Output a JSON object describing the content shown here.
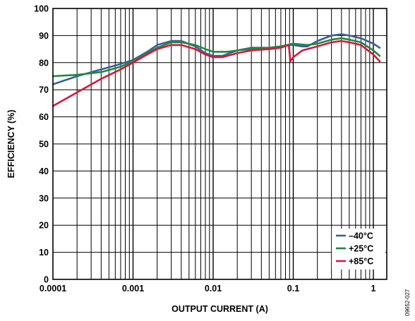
{
  "chart_data": {
    "type": "line",
    "title": "",
    "xlabel": "OUTPUT CURRENT (A)",
    "ylabel": "EFFICIENCY (%)",
    "x_scale": "log",
    "xlim": [
      0.0001,
      1.2
    ],
    "ylim": [
      0,
      100
    ],
    "x_ticks": [
      0.0001,
      0.001,
      0.01,
      0.1,
      1
    ],
    "x_tick_labels": [
      "0.0001",
      "0.001",
      "0.01",
      "0.1",
      "1"
    ],
    "y_ticks": [
      0,
      10,
      20,
      30,
      40,
      50,
      60,
      70,
      80,
      90,
      100
    ],
    "y_tick_labels": [
      "0",
      "10",
      "20",
      "30",
      "40",
      "50",
      "60",
      "70",
      "80",
      "90",
      "100"
    ],
    "grid": true,
    "legend_position": "bottom-right",
    "figure_id": "09652-027",
    "series": [
      {
        "name": "–40°C",
        "color": "#3a5f9e",
        "points": [
          [
            0.0001,
            72
          ],
          [
            0.0002,
            75
          ],
          [
            0.0004,
            77.5
          ],
          [
            0.0007,
            79.5
          ],
          [
            0.001,
            81
          ],
          [
            0.0015,
            84
          ],
          [
            0.002,
            86.5
          ],
          [
            0.003,
            88
          ],
          [
            0.004,
            88
          ],
          [
            0.006,
            86
          ],
          [
            0.008,
            83.5
          ],
          [
            0.01,
            82.5
          ],
          [
            0.013,
            82.5
          ],
          [
            0.02,
            84.5
          ],
          [
            0.03,
            85.5
          ],
          [
            0.05,
            85.5
          ],
          [
            0.07,
            86
          ],
          [
            0.085,
            86.5
          ],
          [
            0.1,
            86.5
          ],
          [
            0.13,
            86
          ],
          [
            0.15,
            86
          ],
          [
            0.2,
            88
          ],
          [
            0.3,
            90
          ],
          [
            0.4,
            90.5
          ],
          [
            0.5,
            90
          ],
          [
            0.7,
            89
          ],
          [
            1,
            87
          ],
          [
            1.2,
            85.5
          ]
        ]
      },
      {
        "name": "+25°C",
        "color": "#1f8a3c",
        "points": [
          [
            0.0001,
            75
          ],
          [
            0.0002,
            75.5
          ],
          [
            0.0004,
            76.5
          ],
          [
            0.0007,
            78.5
          ],
          [
            0.001,
            80.5
          ],
          [
            0.0015,
            83.5
          ],
          [
            0.002,
            85.5
          ],
          [
            0.003,
            87.5
          ],
          [
            0.004,
            87.5
          ],
          [
            0.006,
            86.5
          ],
          [
            0.008,
            85
          ],
          [
            0.01,
            84
          ],
          [
            0.015,
            84
          ],
          [
            0.02,
            84.5
          ],
          [
            0.03,
            85
          ],
          [
            0.05,
            85.5
          ],
          [
            0.07,
            86
          ],
          [
            0.1,
            87
          ],
          [
            0.15,
            86.5
          ],
          [
            0.2,
            87
          ],
          [
            0.3,
            88.5
          ],
          [
            0.4,
            89
          ],
          [
            0.5,
            88.5
          ],
          [
            0.7,
            87.5
          ],
          [
            1,
            84.5
          ],
          [
            1.2,
            82.5
          ]
        ]
      },
      {
        "name": "+85°C",
        "color": "#d7173d",
        "points": [
          [
            0.0001,
            64
          ],
          [
            0.0002,
            69
          ],
          [
            0.0004,
            74
          ],
          [
            0.0007,
            77.5
          ],
          [
            0.001,
            80
          ],
          [
            0.0015,
            83
          ],
          [
            0.002,
            85
          ],
          [
            0.003,
            86.5
          ],
          [
            0.004,
            86.5
          ],
          [
            0.006,
            85
          ],
          [
            0.008,
            83
          ],
          [
            0.01,
            82
          ],
          [
            0.013,
            82
          ],
          [
            0.02,
            83.5
          ],
          [
            0.03,
            84.5
          ],
          [
            0.05,
            85
          ],
          [
            0.07,
            85.5
          ],
          [
            0.088,
            86.5
          ],
          [
            0.092,
            80.5
          ],
          [
            0.1,
            82
          ],
          [
            0.13,
            84.5
          ],
          [
            0.2,
            86
          ],
          [
            0.3,
            87.5
          ],
          [
            0.4,
            88
          ],
          [
            0.5,
            87.5
          ],
          [
            0.7,
            86.5
          ],
          [
            1,
            83
          ],
          [
            1.2,
            80.5
          ]
        ]
      }
    ]
  }
}
